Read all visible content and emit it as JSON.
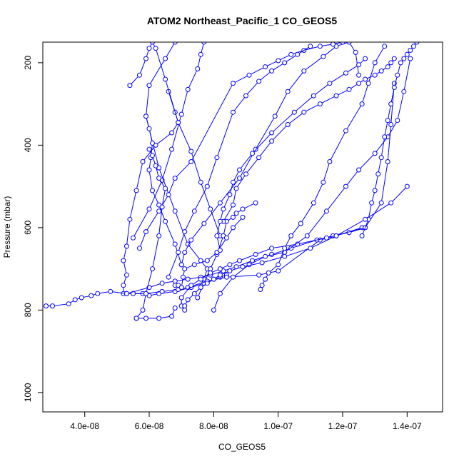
{
  "chart_data": {
    "type": "line",
    "title": "ATOM2 Northeast_Pacific_1 CO_GEOS5",
    "xlabel": "CO_GEOS5",
    "ylabel": "Pressure (mbar)",
    "xlim": [
      2.7e-08,
      1.51e-07
    ],
    "ylim": [
      1047,
      150
    ],
    "y_reversed": true,
    "grid": false,
    "legend": "none",
    "xticks": [
      4e-08,
      6e-08,
      8e-08,
      1e-07,
      1.2e-07,
      1.4e-07
    ],
    "xtick_labels": [
      "4.0e-08",
      "6.0e-08",
      "8.0e-08",
      "1.0e-07",
      "1.2e-07",
      "1.4e-07"
    ],
    "yticks": [
      200,
      400,
      600,
      800,
      1000
    ],
    "ytick_labels": [
      "200",
      "400",
      "600",
      "800",
      "1000"
    ],
    "marker": "open-circle",
    "color": "#0000ff",
    "series": [
      {
        "x": [
          5.6e-08,
          5.9e-08,
          6.3e-08,
          6.7e-08,
          6.8e-08
        ],
        "y": [
          820,
          820,
          820,
          815,
          795
        ]
      },
      {
        "x": [
          7.7e-08,
          7.6e-08,
          7.5e-08,
          7.2e-08,
          7e-08,
          6.7e-08,
          6.4e-08,
          6e-08,
          5.5e-08
        ],
        "y": [
          150,
          180,
          215,
          265,
          325,
          410,
          485,
          555,
          625
        ]
      },
      {
        "x": [
          6.6e-08,
          6.8e-08,
          6.9e-08,
          6.7e-08,
          6.2e-08,
          5.8e-08,
          5.6e-08,
          5.4e-08,
          5.3e-08,
          5.2e-08,
          5.3e-08,
          5.2e-08,
          5.2e-08,
          5.3e-08
        ],
        "y": [
          270,
          320,
          345,
          370,
          400,
          440,
          510,
          580,
          645,
          680,
          715,
          740,
          760,
          760
        ]
      },
      {
        "x": [
          5.4e-08,
          5.7e-08,
          5.9e-08,
          6e-08,
          6.1e-08,
          6.2e-08,
          6.5e-08,
          6.9e-08,
          7.3e-08,
          7.6e-08,
          7.9e-08,
          8.2e-08
        ],
        "y": [
          255,
          230,
          190,
          165,
          150,
          165,
          240,
          345,
          415,
          490,
          555,
          620
        ]
      },
      {
        "x": [
          6.8e-08,
          6.5e-08,
          6e-08,
          5.9e-08,
          6.3e-08,
          6.8e-08,
          7.2e-08,
          7.6e-08,
          7.8e-08,
          7.7e-08
        ],
        "y": [
          150,
          190,
          255,
          330,
          455,
          560,
          640,
          680,
          700,
          725
        ]
      },
      {
        "x": [
          5.9e-08,
          6e-08,
          6.1e-08,
          6.05e-08,
          6e-08,
          6.1e-08,
          6.3e-08,
          6.5e-08,
          6.8e-08,
          7e-08
        ],
        "y": [
          330,
          360,
          395,
          430,
          460,
          510,
          545,
          585,
          640,
          690
        ]
      },
      {
        "x": [
          9.3e-08,
          8.9e-08,
          8.7e-08,
          8.6e-08,
          8.4e-08,
          8.3e-08,
          8.1e-08,
          7.9e-08,
          7.7e-08,
          7.5e-08
        ],
        "y": [
          540,
          555,
          565,
          575,
          585,
          620,
          665,
          700,
          735,
          770
        ]
      },
      {
        "x": [
          5.5e-08,
          5.8e-08,
          6e-08,
          6.3e-08,
          6.8e-08,
          7.3e-08,
          7.7e-08,
          8e-08,
          8.2e-08,
          8.4e-08
        ],
        "y": [
          760,
          760,
          765,
          760,
          755,
          745,
          735,
          725,
          720,
          715
        ]
      },
      {
        "x": [
          2.8e-08,
          3e-08,
          3.5e-08,
          3.7e-08,
          3.9e-08,
          4.2e-08,
          4.4e-08,
          4.8e-08,
          5.3e-08,
          5.5e-08,
          5.9e-08,
          6.4e-08,
          6.9e-08,
          7.2e-08,
          7.8e-08,
          8.4e-08,
          9.4e-08,
          1e-07,
          1.13e-07,
          1.18e-07,
          1.26e-07
        ],
        "y": [
          790,
          790,
          785,
          775,
          770,
          765,
          760,
          755,
          760,
          760,
          760,
          755,
          750,
          745,
          730,
          720,
          715,
          705,
          630,
          620,
          600
        ]
      },
      {
        "x": [
          5.3e-08,
          6e-08,
          6.4e-08,
          6.8e-08,
          7.2e-08,
          7.6e-08,
          7.9e-08,
          8.3e-08,
          8.7e-08,
          9.2e-08,
          9.8e-08,
          1.04e-07,
          1.12e-07,
          1.17e-07,
          1.22e-07,
          1.27e-07
        ],
        "y": [
          760,
          745,
          735,
          730,
          725,
          720,
          715,
          705,
          695,
          680,
          665,
          650,
          630,
          620,
          612,
          600
        ]
      },
      {
        "x": [
          7.1e-08,
          7e-08,
          7e-08,
          7.3e-08,
          7.6e-08,
          7.9e-08,
          8.2e-08,
          8.5e-08,
          8.8e-08,
          9.3e-08,
          9.8e-08,
          1.06e-07,
          1.15e-07,
          1.27e-07,
          1.32e-07,
          1.34e-07,
          1.35e-07,
          1.36e-07
        ],
        "y": [
          800,
          790,
          770,
          740,
          725,
          710,
          700,
          690,
          680,
          665,
          650,
          640,
          625,
          600,
          540,
          440,
          350,
          250
        ]
      },
      {
        "x": [
          6.8e-08,
          6.9e-08,
          7e-08,
          7.05e-08,
          7.1e-08,
          7.4e-08,
          7.8e-08,
          8.1e-08,
          8.4e-08,
          8.6e-08,
          8.9e-08
        ],
        "y": [
          740,
          740,
          745,
          720,
          700,
          690,
          680,
          660,
          625,
          600,
          575
        ]
      },
      {
        "x": [
          8e-08,
          8.2e-08,
          8.6e-08,
          9.1e-08,
          9.6e-08,
          1.02e-07,
          1.09e-07,
          1.15e-07,
          1.21e-07,
          1.25e-07,
          1.3e-07,
          1.34e-07,
          1.37e-07,
          1.39e-07,
          1.41e-07
        ],
        "y": [
          800,
          760,
          720,
          690,
          670,
          660,
          620,
          560,
          500,
          460,
          420,
          380,
          340,
          270,
          190
        ]
      },
      {
        "x": [
          9.45e-08,
          9.5e-08,
          9.6e-08,
          9.7e-08,
          1e-07,
          1.02e-07,
          1.04e-07,
          1.07e-07,
          1.11e-07,
          1.14e-07,
          1.16e-07,
          1.21e-07,
          1.26e-07,
          1.28e-07,
          1.3e-07,
          1.33e-07
        ],
        "y": [
          750,
          740,
          725,
          710,
          690,
          650,
          620,
          590,
          540,
          490,
          440,
          365,
          300,
          250,
          200,
          160
        ]
      },
      {
        "x": [
          7e-08,
          7.1e-08,
          7.3e-08,
          7.7e-08,
          8.2e-08,
          8.8e-08,
          9.3e-08,
          9.9e-08,
          1.03e-07,
          1.08e-07,
          1.14e-07,
          1.18e-07,
          1.22e-07,
          1.24e-07,
          1.25e-07
        ],
        "y": [
          690,
          660,
          630,
          590,
          540,
          480,
          410,
          330,
          270,
          220,
          185,
          160,
          150,
          175,
          230
        ]
      },
      {
        "x": [
          5.7e-08,
          5.9e-08,
          6.3e-08,
          6.6e-08,
          6.8e-08,
          7.3e-08,
          8.6e-08,
          9.1e-08,
          9.6e-08,
          1e-07,
          1.04e-07,
          1.08e-07,
          1.13e-07,
          1.17e-07,
          1.2e-07
        ],
        "y": [
          650,
          610,
          560,
          520,
          480,
          440,
          250,
          230,
          210,
          195,
          180,
          170,
          160,
          155,
          150
        ]
      },
      {
        "x": [
          6.6e-08,
          6.9e-08,
          7.1e-08,
          7.4e-08,
          7.8e-08,
          8.1e-08,
          8.6e-08,
          9e-08,
          9.4e-08,
          9.8e-08,
          1.02e-07,
          1.06e-07,
          1.1e-07
        ],
        "y": [
          720,
          660,
          610,
          560,
          500,
          430,
          320,
          280,
          245,
          220,
          200,
          180,
          160
        ]
      },
      {
        "x": [
          5.6e-08,
          5.8e-08,
          5.9e-08,
          6.1e-08,
          6.3e-08,
          6.4e-08,
          6.5e-08,
          6.3e-08,
          6.2e-08,
          6.1e-08,
          6e-08
        ],
        "y": [
          820,
          800,
          760,
          700,
          620,
          550,
          505,
          480,
          450,
          425,
          410
        ]
      },
      {
        "x": [
          8.3e-08,
          8.6e-08,
          8.7e-08,
          9e-08,
          9.4e-08,
          9.8e-08,
          1.03e-07,
          1.08e-07,
          1.13e-07,
          1.18e-07,
          1.22e-07,
          1.25e-07,
          1.27e-07,
          1.3e-07,
          1.32e-07,
          1.34e-07,
          1.35e-07,
          1.36e-07
        ],
        "y": [
          585,
          545,
          505,
          470,
          430,
          390,
          350,
          320,
          300,
          280,
          265,
          250,
          240,
          230,
          220,
          210,
          200,
          190
        ]
      },
      {
        "x": [
          8.2e-08,
          8.1e-08,
          8.2e-08,
          8.3e-08,
          8.5e-08,
          8.6e-08,
          8.8e-08,
          9.2e-08,
          9.8e-08,
          1.05e-07,
          1.11e-07,
          1.16e-07,
          1.21e-07,
          1.25e-07,
          1.27e-07
        ],
        "y": [
          655,
          620,
          585,
          555,
          520,
          490,
          460,
          420,
          370,
          320,
          280,
          250,
          225,
          205,
          190
        ]
      },
      {
        "x": [
          1.26e-07,
          1.28e-07,
          1.29e-07,
          1.3e-07,
          1.31e-07,
          1.32e-07,
          1.33e-07,
          1.34e-07,
          1.35e-07,
          1.36e-07,
          1.37e-07,
          1.38e-07,
          1.39e-07,
          1.4e-07,
          1.41e-07,
          1.42e-07,
          1.43e-07
        ],
        "y": [
          620,
          580,
          540,
          510,
          470,
          430,
          380,
          340,
          300,
          260,
          230,
          200,
          190,
          180,
          170,
          160,
          150
        ]
      },
      {
        "x": [
          7.1e-08,
          7.2e-08,
          7.4e-08,
          7.6e-08,
          7.8e-08,
          8e-08,
          8.2e-08,
          8.5e-08,
          8.9e-08,
          9.5e-08,
          1.02e-07,
          1.1e-07,
          1.18e-07,
          1.27e-07,
          1.35e-07,
          1.4e-07
        ],
        "y": [
          790,
          775,
          760,
          745,
          735,
          725,
          715,
          705,
          695,
          685,
          670,
          650,
          620,
          580,
          540,
          500
        ]
      }
    ]
  }
}
